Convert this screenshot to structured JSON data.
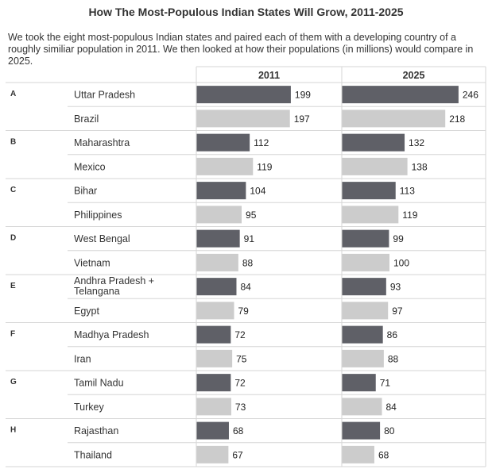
{
  "title": "How The Most-Populous Indian States Will Grow, 2011-2025",
  "subtitle": "We took the eight most-populous Indian states and paired each of them with a developing country of a roughly similiar population in 2011. We then looked at how their populations (in millions) would compare in 2025.",
  "colors": {
    "state": "#5f6067",
    "country": "#cccccc",
    "grid": "#d6d6d6",
    "text": "#333333"
  },
  "chart_data": {
    "type": "bar",
    "title": "How The Most-Populous Indian States Will Grow, 2011-2025",
    "unit": "millions",
    "columns": [
      "2011",
      "2025"
    ],
    "groups": [
      {
        "letter": "A",
        "rows": [
          {
            "name": "Uttar Pradesh",
            "kind": "state",
            "values": [
              199,
              246
            ]
          },
          {
            "name": "Brazil",
            "kind": "country",
            "values": [
              197,
              218
            ]
          }
        ]
      },
      {
        "letter": "B",
        "rows": [
          {
            "name": "Maharashtra",
            "kind": "state",
            "values": [
              112,
              132
            ]
          },
          {
            "name": "Mexico",
            "kind": "country",
            "values": [
              119,
              138
            ]
          }
        ]
      },
      {
        "letter": "C",
        "rows": [
          {
            "name": "Bihar",
            "kind": "state",
            "values": [
              104,
              113
            ]
          },
          {
            "name": "Philippines",
            "kind": "country",
            "values": [
              95,
              119
            ]
          }
        ]
      },
      {
        "letter": "D",
        "rows": [
          {
            "name": "West Bengal",
            "kind": "state",
            "values": [
              91,
              99
            ]
          },
          {
            "name": "Vietnam",
            "kind": "country",
            "values": [
              88,
              100
            ]
          }
        ]
      },
      {
        "letter": "E",
        "rows": [
          {
            "name": "Andhra Pradesh + Telangana",
            "kind": "state",
            "values": [
              84,
              93
            ]
          },
          {
            "name": "Egypt",
            "kind": "country",
            "values": [
              79,
              97
            ]
          }
        ]
      },
      {
        "letter": "F",
        "rows": [
          {
            "name": "Madhya Pradesh",
            "kind": "state",
            "values": [
              72,
              86
            ]
          },
          {
            "name": "Iran",
            "kind": "country",
            "values": [
              75,
              88
            ]
          }
        ]
      },
      {
        "letter": "G",
        "rows": [
          {
            "name": "Tamil Nadu",
            "kind": "state",
            "values": [
              72,
              71
            ]
          },
          {
            "name": "Turkey",
            "kind": "country",
            "values": [
              73,
              84
            ]
          }
        ]
      },
      {
        "letter": "H",
        "rows": [
          {
            "name": "Rajasthan",
            "kind": "state",
            "values": [
              68,
              80
            ]
          },
          {
            "name": "Thailand",
            "kind": "country",
            "values": [
              67,
              68
            ]
          }
        ]
      }
    ]
  }
}
